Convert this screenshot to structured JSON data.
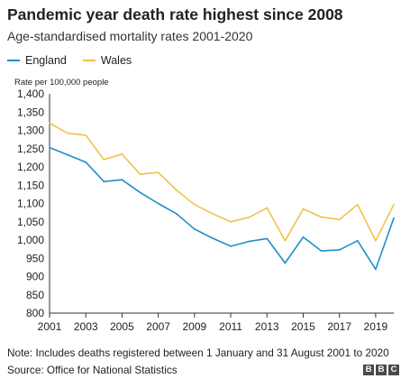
{
  "header": {
    "title": "Pandemic year death rate highest since 2008",
    "subtitle": "Age-standardised mortality rates 2001-2020"
  },
  "footer": {
    "note": "Note: Includes deaths registered between 1 January and 31 August 2001 to 2020",
    "source": "Source: Office for National Statistics",
    "logo_letters": [
      "B",
      "B",
      "C"
    ]
  },
  "colors": {
    "england": "#1f8fc8",
    "wales": "#f0c24b",
    "axis": "#333333",
    "grid": "#dddddd"
  },
  "chart_data": {
    "type": "line",
    "title": "Pandemic year death rate highest since 2008",
    "subtitle": "Age-standardised mortality rates 2001-2020",
    "ylabel": "Rate per 100,000 people",
    "xlabel": "",
    "ylim": [
      800,
      1400
    ],
    "yticks": [
      800,
      850,
      900,
      950,
      1000,
      1050,
      1100,
      1150,
      1200,
      1250,
      1300,
      1350,
      1400
    ],
    "yticklabels": [
      "800",
      "850",
      "900",
      "950",
      "1,000",
      "1,050",
      "1,100",
      "1,150",
      "1,200",
      "1,250",
      "1,300",
      "1,350",
      "1,400"
    ],
    "xlim": [
      2001,
      2020
    ],
    "xticks": [
      2001,
      2003,
      2005,
      2007,
      2009,
      2011,
      2013,
      2015,
      2017,
      2019
    ],
    "xticklabels": [
      "2001",
      "2003",
      "2005",
      "2007",
      "2009",
      "2011",
      "2013",
      "2015",
      "2017",
      "2019"
    ],
    "grid": false,
    "legend_position": "top-left",
    "x": [
      2001,
      2002,
      2003,
      2004,
      2005,
      2006,
      2007,
      2008,
      2009,
      2010,
      2011,
      2012,
      2013,
      2014,
      2015,
      2016,
      2017,
      2018,
      2019,
      2020
    ],
    "series": [
      {
        "name": "England",
        "color": "#1f8fc8",
        "values": [
          1253,
          1233,
          1213,
          1160,
          1165,
          1130,
          1100,
          1072,
          1030,
          1005,
          983,
          996,
          1004,
          937,
          1008,
          970,
          973,
          998,
          920,
          1060
        ]
      },
      {
        "name": "Wales",
        "color": "#f0c24b",
        "values": [
          1320,
          1292,
          1287,
          1220,
          1235,
          1180,
          1185,
          1137,
          1097,
          1072,
          1050,
          1062,
          1088,
          998,
          1085,
          1063,
          1056,
          1097,
          998,
          1097
        ]
      }
    ]
  }
}
